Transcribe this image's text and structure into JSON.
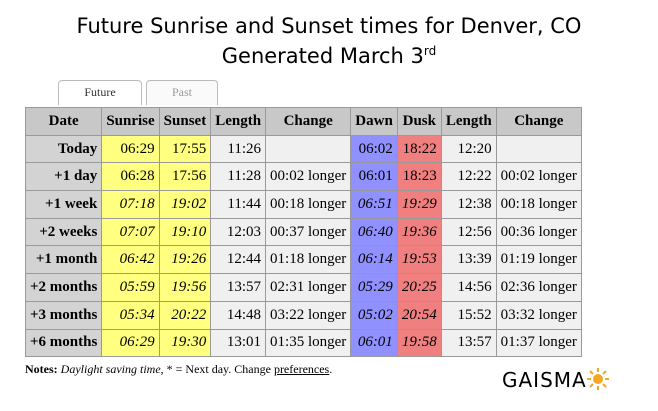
{
  "header": {
    "title": "Future Sunrise and Sunset times for Denver, CO",
    "subtitle": "Generated March 3",
    "subtitle_sup": "rd"
  },
  "tabs": [
    "Future",
    "Past"
  ],
  "table": {
    "columns": [
      "Date",
      "Sunrise",
      "Sunset",
      "Length",
      "Change",
      "Dawn",
      "Dusk",
      "Length",
      "Change"
    ],
    "column_colors": [
      "#d3d3d3",
      "#ffff80",
      "#ffff80",
      "#f0f0f0",
      "#f0f0f0",
      "#9090ff",
      "#f08080",
      "#f0f0f0",
      "#f0f0f0"
    ],
    "rows": [
      {
        "cells": [
          "Today",
          "06:29",
          "17:55",
          "11:26",
          null,
          "06:02",
          "18:22",
          "12:20",
          null
        ],
        "italic": false
      },
      {
        "cells": [
          "+1 day",
          "06:28",
          "17:56",
          "11:28",
          "00:02 longer",
          "06:01",
          "18:23",
          "12:22",
          "00:02 longer"
        ],
        "italic": false
      },
      {
        "cells": [
          "+1 week",
          "07:18",
          "19:02",
          "11:44",
          "00:18 longer",
          "06:51",
          "19:29",
          "12:38",
          "00:18 longer"
        ],
        "italic": true
      },
      {
        "cells": [
          "+2 weeks",
          "07:07",
          "19:10",
          "12:03",
          "00:37 longer",
          "06:40",
          "19:36",
          "12:56",
          "00:36 longer"
        ],
        "italic": true
      },
      {
        "cells": [
          "+1 month",
          "06:42",
          "19:26",
          "12:44",
          "01:18 longer",
          "06:14",
          "19:53",
          "13:39",
          "01:19 longer"
        ],
        "italic": true
      },
      {
        "cells": [
          "+2 months",
          "05:59",
          "19:56",
          "13:57",
          "02:31 longer",
          "05:29",
          "20:25",
          "14:56",
          "02:36 longer"
        ],
        "italic": true
      },
      {
        "cells": [
          "+3 months",
          "05:34",
          "20:22",
          "14:48",
          "03:22 longer",
          "05:02",
          "20:54",
          "15:52",
          "03:32 longer"
        ],
        "italic": true
      },
      {
        "cells": [
          "+6 months",
          "06:29",
          "19:30",
          "13:01",
          "01:35 longer",
          "06:01",
          "19:58",
          "13:57",
          "01:37 longer"
        ],
        "italic": true
      }
    ]
  },
  "notes": {
    "label": "Notes:",
    "italic_text": "Daylight saving time",
    "text": ", * = Next day. Change ",
    "link": "preferences",
    "end": "."
  },
  "logo": "GAISMA"
}
